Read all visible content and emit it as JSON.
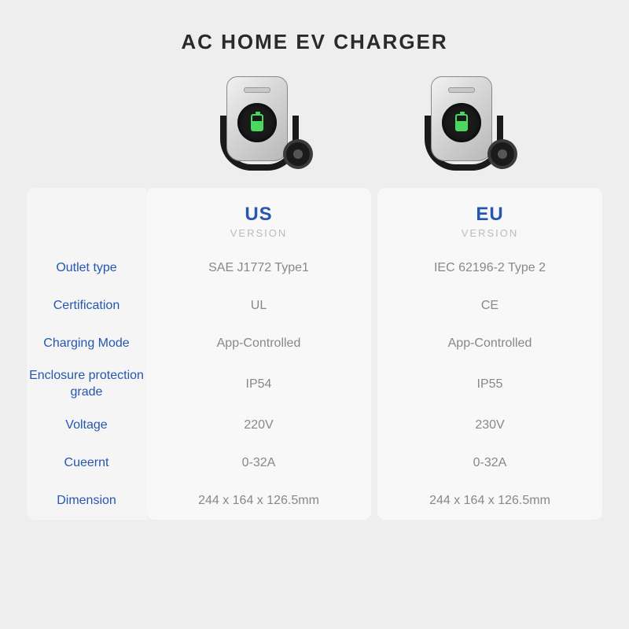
{
  "title": "AC HOME EV CHARGER",
  "columns": [
    {
      "key": "us",
      "title": "US",
      "subtitle": "VERSION"
    },
    {
      "key": "eu",
      "title": "EU",
      "subtitle": "VERSION"
    }
  ],
  "rows": [
    {
      "label": "Outlet type",
      "us": "SAE J1772 Type1",
      "eu": "IEC 62196-2 Type 2"
    },
    {
      "label": "Certification",
      "us": "UL",
      "eu": "CE"
    },
    {
      "label": "Charging Mode",
      "us": "App-Controlled",
      "eu": "App-Controlled"
    },
    {
      "label": "Enclosure protection grade",
      "us": "IP54",
      "eu": "IP55",
      "tall": true
    },
    {
      "label": "Voltage",
      "us": "220V",
      "eu": "230V"
    },
    {
      "label": "Cueernt",
      "us": "0-32A",
      "eu": "0-32A"
    },
    {
      "label": "Dimension",
      "us": "244 x 164 x 126.5mm",
      "eu": "244 x 164 x 126.5mm"
    }
  ],
  "colors": {
    "page_bg": "#eeeeee",
    "panel_bg": "#f8f8f8",
    "labels_bg": "#f5f5f5",
    "label_color": "#2556b0",
    "header_color": "#2556b0",
    "value_color": "#888888"
  }
}
